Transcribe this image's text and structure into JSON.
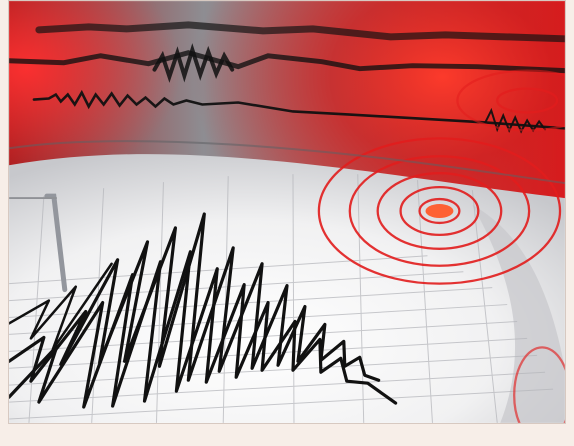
{
  "image": {
    "subject": "seismograph-earthquake-visual",
    "accent_colors": {
      "red": "#e41e1e",
      "dark_red": "#7d0e12",
      "paper": "#f4f4f5",
      "ink": "#1a1a1a",
      "gray": "#6d6f75"
    }
  }
}
